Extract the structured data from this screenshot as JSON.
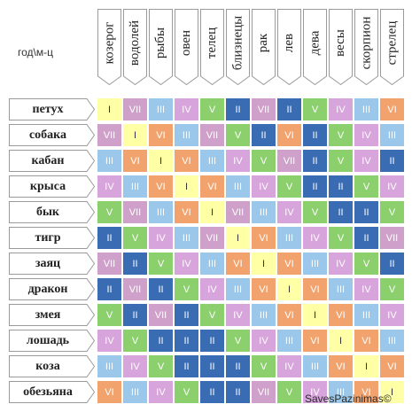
{
  "corner_label": "год\\м-ц",
  "zodiac": [
    "козерог",
    "водолей",
    "рыбы",
    "овен",
    "телец",
    "близнецы",
    "рак",
    "лев",
    "дева",
    "весы",
    "скорпион",
    "стрелец"
  ],
  "animals": [
    "петух",
    "собака",
    "кабан",
    "крыса",
    "бык",
    "тигр",
    "заяц",
    "дракон",
    "змея",
    "лошадь",
    "коза",
    "обезьяна"
  ],
  "grid": [
    [
      "I",
      "VII",
      "III",
      "IV",
      "V",
      "II",
      "VII",
      "II",
      "V",
      "IV",
      "III",
      "VI"
    ],
    [
      "VII",
      "I",
      "VI",
      "III",
      "VII",
      "V",
      "II",
      "VI",
      "II",
      "V",
      "IV",
      "III"
    ],
    [
      "III",
      "VI",
      "I",
      "VI",
      "III",
      "IV",
      "V",
      "VII",
      "II",
      "V",
      "IV",
      "II"
    ],
    [
      "IV",
      "III",
      "VI",
      "I",
      "VI",
      "III",
      "IV",
      "V",
      "II",
      "II",
      "V",
      "IV"
    ],
    [
      "V",
      "VII",
      "III",
      "VI",
      "I",
      "VII",
      "III",
      "IV",
      "V",
      "II",
      "II",
      "V"
    ],
    [
      "II",
      "V",
      "IV",
      "III",
      "VII",
      "I",
      "VI",
      "III",
      "IV",
      "V",
      "II",
      "VII"
    ],
    [
      "VII",
      "II",
      "V",
      "IV",
      "III",
      "VI",
      "I",
      "VI",
      "III",
      "IV",
      "V",
      "II"
    ],
    [
      "II",
      "VII",
      "II",
      "V",
      "IV",
      "III",
      "VI",
      "I",
      "VI",
      "III",
      "IV",
      "V"
    ],
    [
      "V",
      "II",
      "VII",
      "II",
      "V",
      "IV",
      "III",
      "VI",
      "I",
      "VI",
      "III",
      "IV"
    ],
    [
      "IV",
      "V",
      "II",
      "II",
      "II",
      "V",
      "IV",
      "III",
      "VI",
      "I",
      "VI",
      "III"
    ],
    [
      "III",
      "IV",
      "V",
      "II",
      "II",
      "II",
      "V",
      "IV",
      "III",
      "VI",
      "I",
      "VI"
    ],
    [
      "VI",
      "III",
      "IV",
      "V",
      "II",
      "II",
      "VII",
      "V",
      "IV",
      "III",
      "VI",
      "I"
    ]
  ],
  "colors": {
    "I": "#ffffa6",
    "II": "#3a6cb4",
    "III": "#9bc8ea",
    "IV": "#d7a4dc",
    "V": "#8ccf6d",
    "VI": "#f2a36d",
    "VII": "#cfa0c9"
  },
  "text_colors": {
    "I": "#333333",
    "II": "#ffffff",
    "III": "#ffffff",
    "IV": "#ffffff",
    "V": "#ffffff",
    "VI": "#ffffff",
    "VII": "#ffffff"
  },
  "watermark": "SavesPazinimas©"
}
